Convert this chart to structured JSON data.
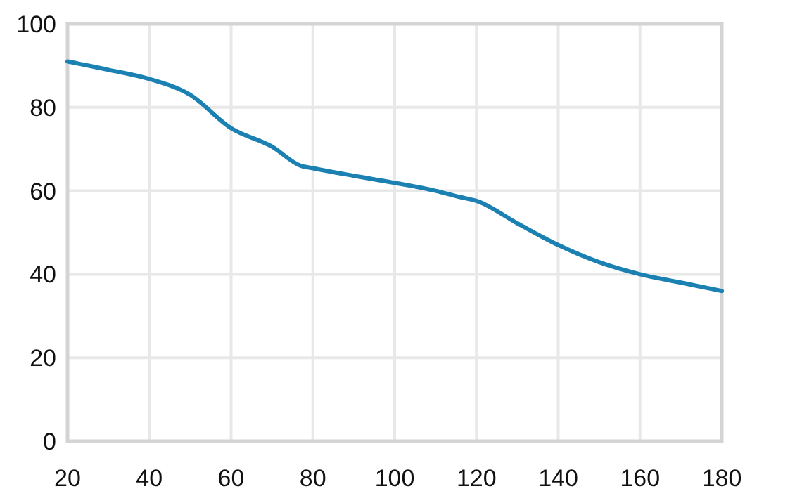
{
  "chart_data": {
    "type": "line",
    "x": [
      20,
      30,
      40,
      50,
      60,
      70,
      77,
      80,
      90,
      100,
      110,
      116,
      120,
      130,
      140,
      150,
      160,
      170,
      180
    ],
    "values": [
      91,
      89,
      86.8,
      83,
      75,
      70.6,
      66,
      65.4,
      63.6,
      61.9,
      60,
      58.5,
      57.6,
      52.2,
      47,
      42.9,
      40,
      38,
      36
    ],
    "color": "#1b80b2",
    "xlim": [
      20,
      180
    ],
    "xticks": [
      20,
      40,
      60,
      80,
      100,
      120,
      140,
      160,
      180
    ],
    "ylim": [
      0,
      100
    ],
    "yticks": [
      0,
      20,
      40,
      60,
      80,
      100
    ],
    "grid": true,
    "marker": "none",
    "line_style": "solid"
  }
}
